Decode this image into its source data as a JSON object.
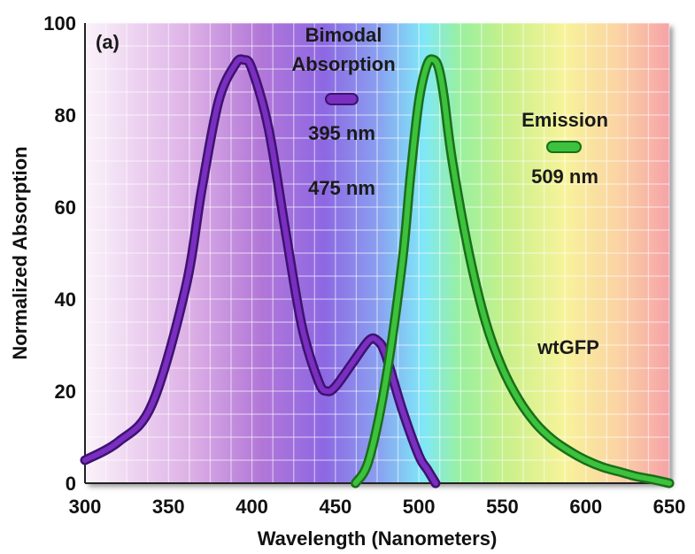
{
  "chart_data": {
    "type": "line",
    "panel_label": "(a)",
    "xlabel": "Wavelength (Nanometers)",
    "ylabel": "Normalized Absorption",
    "xlim": [
      300,
      650
    ],
    "ylim": [
      0,
      100
    ],
    "xticks": [
      300,
      350,
      400,
      450,
      500,
      550,
      600,
      650
    ],
    "yticks": [
      0,
      20,
      40,
      60,
      80,
      100
    ],
    "grid": true,
    "background": "visible-spectrum gradient",
    "series": [
      {
        "name": "Absorption",
        "color": "#7a2fc0",
        "x": [
          300,
          320,
          340,
          360,
          370,
          380,
          390,
          395,
          400,
          410,
          420,
          430,
          440,
          445,
          450,
          460,
          470,
          475,
          480,
          490,
          500,
          505,
          510
        ],
        "y": [
          5,
          9,
          17,
          42,
          64,
          83,
          91,
          92,
          90,
          77,
          55,
          34,
          22,
          20,
          21,
          26,
          31,
          31,
          28,
          16,
          6,
          3,
          0
        ]
      },
      {
        "name": "Emission",
        "color": "#3cc23c",
        "x": [
          462,
          470,
          480,
          490,
          495,
          500,
          505,
          509,
          512,
          515,
          520,
          530,
          540,
          550,
          560,
          570,
          580,
          590,
          600,
          610,
          620,
          630,
          640,
          650
        ],
        "y": [
          0,
          5,
          22,
          48,
          67,
          83,
          91,
          92,
          90,
          84,
          70,
          50,
          35,
          25,
          18,
          13,
          9.5,
          7,
          5,
          3.5,
          2.5,
          1.5,
          0.8,
          0
        ]
      }
    ],
    "annotations": {
      "absorption_title_1": "Bimodal",
      "absorption_title_2": "Absorption",
      "absorption_peak_1": "395 nm",
      "absorption_peak_2": "475 nm",
      "emission_title": "Emission",
      "emission_peak": "509 nm",
      "protein": "wtGFP"
    }
  }
}
